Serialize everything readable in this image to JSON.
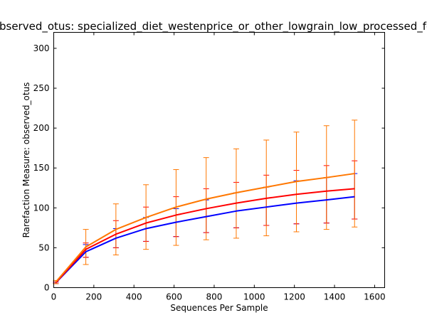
{
  "chart_data": {
    "type": "line",
    "title": "observed_otus: specialized_diet_westenprice_or_other_lowgrain_low_processed_fo",
    "xlabel": "Sequences Per Sample",
    "ylabel": "Rarefaction Measure: observed_otus",
    "xlim": [
      0,
      1650
    ],
    "ylim": [
      0,
      320
    ],
    "xticks": [
      0,
      200,
      400,
      600,
      800,
      1000,
      1200,
      1400,
      1600
    ],
    "yticks": [
      0,
      50,
      100,
      150,
      200,
      250,
      300
    ],
    "grid": false,
    "legend": "none",
    "x": [
      10,
      160,
      310,
      460,
      610,
      760,
      910,
      1060,
      1210,
      1360,
      1500
    ],
    "series": [
      {
        "color": "#0000ff",
        "values": [
          6,
          45,
          62,
          74,
          82,
          89,
          96,
          101,
          106,
          110,
          114
        ],
        "err_low": [
          5,
          38,
          50,
          58,
          64,
          69,
          75,
          78,
          80,
          81,
          86
        ],
        "err_high": [
          7,
          54,
          74,
          88,
          99,
          110,
          119,
          126,
          134,
          138,
          143
        ]
      },
      {
        "color": "#ff0000",
        "values": [
          6,
          48,
          67,
          81,
          91,
          99,
          106,
          112,
          117,
          121,
          124
        ],
        "err_low": [
          5,
          38,
          50,
          58,
          64,
          69,
          75,
          78,
          80,
          81,
          86
        ],
        "err_high": [
          7,
          56,
          84,
          101,
          114,
          124,
          132,
          141,
          147,
          153,
          159
        ]
      },
      {
        "color": "#ff7700",
        "values": [
          7,
          51,
          73,
          88,
          101,
          111,
          119,
          126,
          133,
          138,
          143
        ],
        "err_low": [
          5,
          29,
          41,
          48,
          53,
          60,
          62,
          65,
          70,
          73,
          76
        ],
        "err_high": [
          9,
          73,
          105,
          129,
          148,
          163,
          174,
          185,
          195,
          203,
          210
        ]
      }
    ]
  }
}
